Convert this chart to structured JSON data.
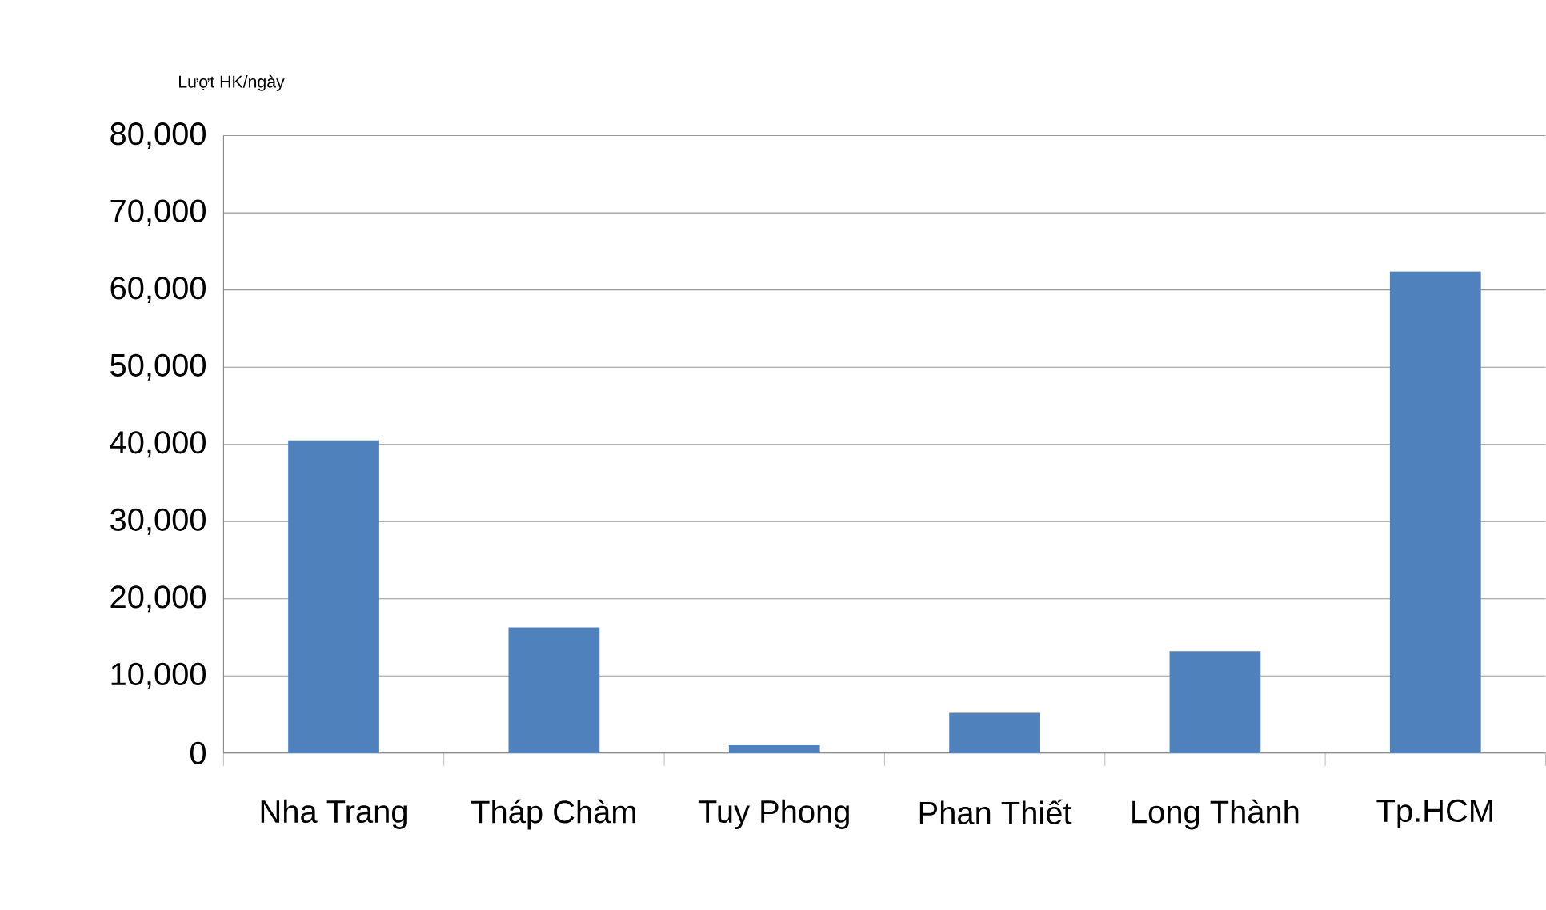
{
  "chart_data": {
    "type": "bar",
    "ylabel": "Lượt HK/ngày",
    "categories": [
      "Nha Trang",
      "Tháp Chàm",
      "Tuy Phong",
      "Phan Thiết",
      "Long Thành",
      "Tp.HCM"
    ],
    "values": [
      40500,
      16300,
      1000,
      5200,
      13200,
      62400
    ],
    "color": "#4f81bd",
    "ylim": [
      0,
      80000
    ],
    "yticks": [
      {
        "value": 0,
        "label": "0"
      },
      {
        "value": 10000,
        "label": "10,000"
      },
      {
        "value": 20000,
        "label": "20,000"
      },
      {
        "value": 30000,
        "label": "30,000"
      },
      {
        "value": 40000,
        "label": "40,000"
      },
      {
        "value": 50000,
        "label": "50,000"
      },
      {
        "value": 60000,
        "label": "60,000"
      },
      {
        "value": 70000,
        "label": "70,000"
      },
      {
        "value": 80000,
        "label": "80,000"
      }
    ],
    "grid": "y"
  }
}
